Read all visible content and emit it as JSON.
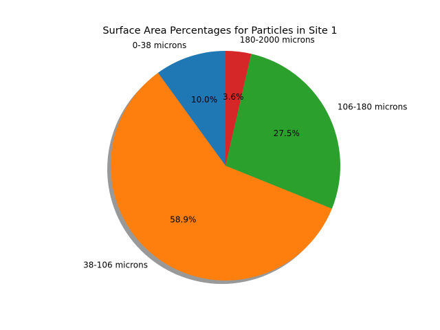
{
  "chart_data": {
    "type": "pie",
    "title": "Surface Area Percentages for Particles in Site 1",
    "slices": [
      {
        "label": "0-38 microns",
        "value": 10.0,
        "pct_label": "10.0%",
        "color": "#1f77b4"
      },
      {
        "label": "38-106 microns",
        "value": 58.9,
        "pct_label": "58.9%",
        "color": "#ff7f0e"
      },
      {
        "label": "106-180 microns",
        "value": 27.5,
        "pct_label": "27.5%",
        "color": "#2ca02c"
      },
      {
        "label": "180-2000 microns",
        "value": 3.6,
        "pct_label": "3.6%",
        "color": "#d62728"
      }
    ],
    "start_angle": 90,
    "direction": "counterclockwise",
    "shadow": true
  }
}
